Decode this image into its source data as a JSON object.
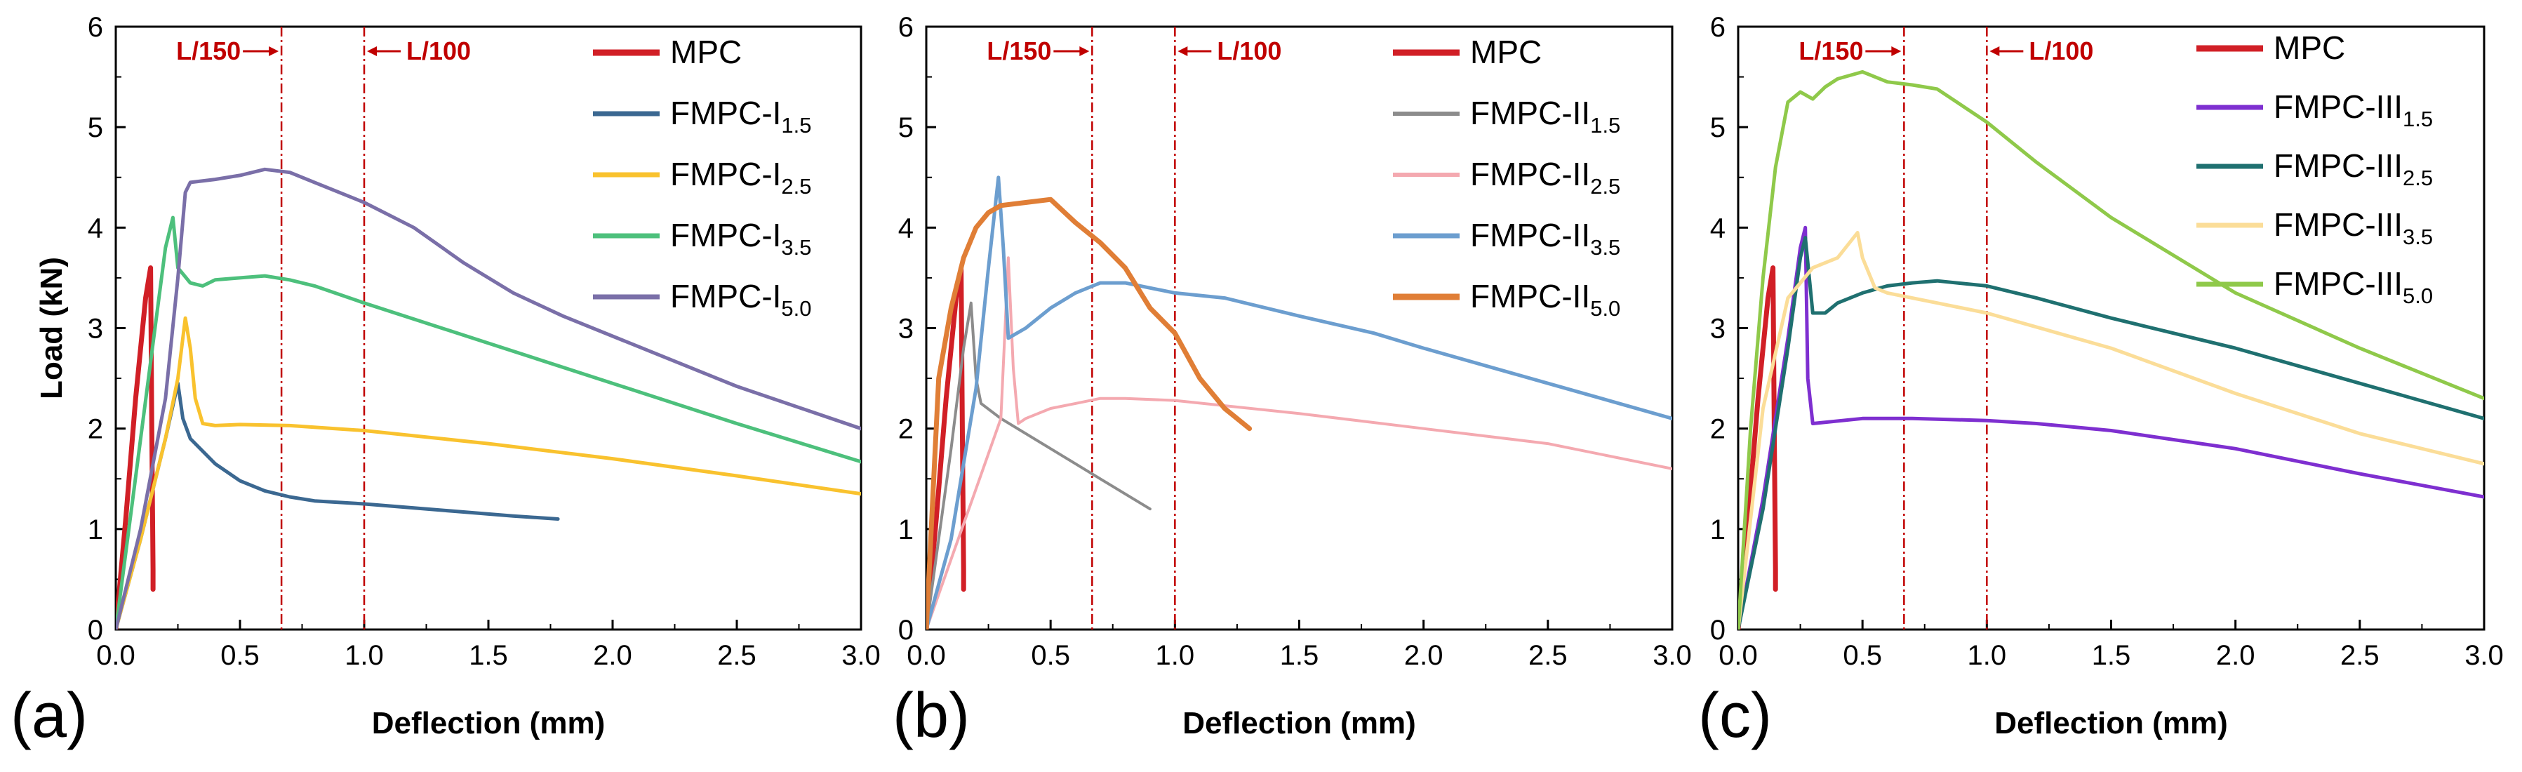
{
  "chart_data": [
    {
      "type": "line",
      "panel_label": "(a)",
      "xlabel": "Deflection (mm)",
      "ylabel": "Load (kN)",
      "xlim": [
        0,
        3
      ],
      "ylim": [
        0,
        6
      ],
      "xticks": [
        "0.0",
        "0.5",
        "1.0",
        "1.5",
        "2.0",
        "2.5",
        "3.0"
      ],
      "yticks": [
        "0",
        "1",
        "2",
        "3",
        "4",
        "5",
        "6"
      ],
      "grid": false,
      "legend_position": "top-right",
      "reference_lines": [
        {
          "x": 0.667,
          "label": "L/150",
          "arrow": "right"
        },
        {
          "x": 1.0,
          "label": "L/100",
          "arrow": "left"
        }
      ],
      "series": [
        {
          "name": "MPC",
          "base": "MPC",
          "sub": "",
          "color": "#d11f26",
          "width": 7,
          "x": [
            0,
            0.04,
            0.08,
            0.12,
            0.14,
            0.145,
            0.15,
            0.15
          ],
          "y": [
            0,
            1.1,
            2.3,
            3.3,
            3.6,
            2.0,
            0.6,
            0.4
          ]
        },
        {
          "name": "FMPC-I1.5",
          "base": "FMPC-I",
          "sub": "1.5",
          "color": "#3b6891",
          "width": 5,
          "x": [
            0,
            0.1,
            0.2,
            0.25,
            0.27,
            0.3,
            0.4,
            0.5,
            0.6,
            0.7,
            0.8,
            1.0,
            1.2,
            1.4,
            1.6,
            1.78
          ],
          "y": [
            0,
            0.9,
            1.9,
            2.45,
            2.1,
            1.9,
            1.65,
            1.48,
            1.38,
            1.32,
            1.28,
            1.25,
            1.21,
            1.17,
            1.13,
            1.1
          ]
        },
        {
          "name": "FMPC-I2.5",
          "base": "FMPC-I",
          "sub": "2.5",
          "color": "#f9c22e",
          "width": 5,
          "x": [
            0,
            0.1,
            0.2,
            0.25,
            0.28,
            0.3,
            0.32,
            0.35,
            0.4,
            0.5,
            0.7,
            1.0,
            1.5,
            2.0,
            2.5,
            3.0
          ],
          "y": [
            0,
            0.9,
            1.9,
            2.5,
            3.1,
            2.8,
            2.3,
            2.05,
            2.03,
            2.04,
            2.03,
            1.98,
            1.85,
            1.7,
            1.53,
            1.35
          ]
        },
        {
          "name": "FMPC-I3.5",
          "base": "FMPC-I",
          "sub": "3.5",
          "color": "#4dc07c",
          "width": 5,
          "x": [
            0,
            0.1,
            0.2,
            0.23,
            0.25,
            0.3,
            0.35,
            0.4,
            0.5,
            0.6,
            0.7,
            0.8,
            1.0,
            1.5,
            2.0,
            2.5,
            3.0
          ],
          "y": [
            0,
            1.9,
            3.8,
            4.1,
            3.6,
            3.45,
            3.42,
            3.48,
            3.5,
            3.52,
            3.48,
            3.42,
            3.25,
            2.85,
            2.45,
            2.05,
            1.67
          ]
        },
        {
          "name": "FMPC-I5.0",
          "base": "FMPC-I",
          "sub": "5.0",
          "color": "#7a6fa8",
          "width": 5,
          "x": [
            0,
            0.1,
            0.2,
            0.25,
            0.28,
            0.3,
            0.4,
            0.5,
            0.6,
            0.7,
            0.8,
            1.0,
            1.2,
            1.4,
            1.6,
            1.8,
            2.0,
            2.5,
            3.0
          ],
          "y": [
            0,
            1.0,
            2.3,
            3.5,
            4.35,
            4.45,
            4.48,
            4.52,
            4.58,
            4.55,
            4.45,
            4.25,
            4.0,
            3.65,
            3.35,
            3.12,
            2.92,
            2.42,
            2.0
          ]
        }
      ]
    },
    {
      "type": "line",
      "panel_label": "(b)",
      "xlabel": "Deflection (mm)",
      "ylabel": "",
      "xlim": [
        0,
        3
      ],
      "ylim": [
        0,
        6
      ],
      "xticks": [
        "0.0",
        "0.5",
        "1.0",
        "1.5",
        "2.0",
        "2.5",
        "3.0"
      ],
      "yticks": [
        "0",
        "1",
        "2",
        "3",
        "4",
        "5",
        "6"
      ],
      "grid": false,
      "legend_position": "top-right",
      "reference_lines": [
        {
          "x": 0.667,
          "label": "L/150",
          "arrow": "right"
        },
        {
          "x": 1.0,
          "label": "L/100",
          "arrow": "left"
        }
      ],
      "series": [
        {
          "name": "MPC",
          "base": "MPC",
          "sub": "",
          "color": "#d11f26",
          "width": 7,
          "x": [
            0,
            0.04,
            0.08,
            0.12,
            0.14,
            0.145,
            0.15,
            0.15
          ],
          "y": [
            0,
            1.1,
            2.3,
            3.3,
            3.6,
            2.0,
            0.6,
            0.4
          ]
        },
        {
          "name": "FMPC-II1.5",
          "base": "FMPC-II",
          "sub": "1.5",
          "color": "#8c8c8c",
          "width": 4,
          "x": [
            0,
            0.1,
            0.15,
            0.18,
            0.2,
            0.22,
            0.3,
            0.5,
            0.7,
            0.9
          ],
          "y": [
            0,
            1.8,
            2.8,
            3.25,
            2.5,
            2.25,
            2.1,
            1.8,
            1.5,
            1.2
          ]
        },
        {
          "name": "FMPC-II2.5",
          "base": "FMPC-II",
          "sub": "2.5",
          "color": "#f4a9b0",
          "width": 4,
          "x": [
            0,
            0.1,
            0.2,
            0.3,
            0.33,
            0.35,
            0.37,
            0.4,
            0.5,
            0.6,
            0.7,
            0.8,
            1.0,
            1.5,
            2.0,
            2.5,
            3.0
          ],
          "y": [
            0,
            0.7,
            1.4,
            2.1,
            3.7,
            2.6,
            2.05,
            2.1,
            2.2,
            2.25,
            2.3,
            2.3,
            2.28,
            2.15,
            2.0,
            1.85,
            1.6
          ]
        },
        {
          "name": "FMPC-II3.5",
          "base": "FMPC-II",
          "sub": "3.5",
          "color": "#6c9ecf",
          "width": 5,
          "x": [
            0,
            0.1,
            0.2,
            0.25,
            0.29,
            0.31,
            0.33,
            0.4,
            0.5,
            0.6,
            0.7,
            0.8,
            1.0,
            1.2,
            1.5,
            1.8,
            2.0,
            2.5,
            3.0
          ],
          "y": [
            0,
            0.9,
            2.4,
            3.6,
            4.5,
            3.8,
            2.9,
            3.0,
            3.2,
            3.35,
            3.45,
            3.45,
            3.35,
            3.3,
            3.12,
            2.95,
            2.8,
            2.45,
            2.1
          ]
        },
        {
          "name": "FMPC-II5.0",
          "base": "FMPC-II",
          "sub": "5.0",
          "color": "#e07e36",
          "width": 7,
          "x": [
            0,
            0.05,
            0.1,
            0.15,
            0.2,
            0.25,
            0.3,
            0.4,
            0.5,
            0.6,
            0.7,
            0.8,
            0.9,
            1.0,
            1.1,
            1.2,
            1.3
          ],
          "y": [
            0,
            2.5,
            3.2,
            3.7,
            4.0,
            4.15,
            4.22,
            4.25,
            4.28,
            4.05,
            3.85,
            3.6,
            3.2,
            2.95,
            2.5,
            2.2,
            2.0
          ]
        }
      ]
    },
    {
      "type": "line",
      "panel_label": "(c)",
      "xlabel": "Deflection (mm)",
      "ylabel": "",
      "xlim": [
        0,
        3
      ],
      "ylim": [
        0,
        6
      ],
      "xticks": [
        "0.0",
        "0.5",
        "1.0",
        "1.5",
        "2.0",
        "2.5",
        "3.0"
      ],
      "yticks": [
        "0",
        "1",
        "2",
        "3",
        "4",
        "5",
        "6"
      ],
      "grid": false,
      "legend_position": "top-right",
      "reference_lines": [
        {
          "x": 0.667,
          "label": "L/150",
          "arrow": "right"
        },
        {
          "x": 1.0,
          "label": "L/100",
          "arrow": "left"
        }
      ],
      "series": [
        {
          "name": "MPC",
          "base": "MPC",
          "sub": "",
          "color": "#d11f26",
          "width": 7,
          "x": [
            0,
            0.04,
            0.08,
            0.12,
            0.14,
            0.145,
            0.15,
            0.15
          ],
          "y": [
            0,
            1.1,
            2.3,
            3.3,
            3.6,
            2.0,
            0.6,
            0.4
          ]
        },
        {
          "name": "FMPC-III1.5",
          "base": "FMPC-III",
          "sub": "1.5",
          "color": "#7e2fd0",
          "width": 5,
          "x": [
            0,
            0.1,
            0.2,
            0.25,
            0.27,
            0.28,
            0.3,
            0.5,
            0.7,
            1.0,
            1.2,
            1.5,
            2.0,
            2.5,
            3.0
          ],
          "y": [
            0,
            1.3,
            2.9,
            3.8,
            4.0,
            2.5,
            2.05,
            2.1,
            2.1,
            2.08,
            2.05,
            1.98,
            1.8,
            1.55,
            1.32
          ]
        },
        {
          "name": "FMPC-III2.5",
          "base": "FMPC-III",
          "sub": "2.5",
          "color": "#1f7070",
          "width": 5,
          "x": [
            0,
            0.1,
            0.2,
            0.25,
            0.27,
            0.3,
            0.35,
            0.4,
            0.5,
            0.6,
            0.7,
            0.8,
            1.0,
            1.2,
            1.5,
            2.0,
            2.5,
            3.0
          ],
          "y": [
            0,
            1.2,
            2.8,
            3.7,
            3.9,
            3.15,
            3.15,
            3.25,
            3.35,
            3.42,
            3.45,
            3.47,
            3.42,
            3.3,
            3.1,
            2.8,
            2.45,
            2.1
          ]
        },
        {
          "name": "FMPC-III3.5",
          "base": "FMPC-III",
          "sub": "3.5",
          "color": "#fbdd98",
          "width": 5,
          "x": [
            0,
            0.1,
            0.2,
            0.3,
            0.4,
            0.48,
            0.5,
            0.55,
            0.6,
            0.7,
            0.8,
            1.0,
            1.5,
            2.0,
            2.5,
            3.0
          ],
          "y": [
            0,
            2.2,
            3.3,
            3.6,
            3.7,
            3.95,
            3.7,
            3.4,
            3.35,
            3.3,
            3.25,
            3.15,
            2.8,
            2.35,
            1.95,
            1.65
          ]
        },
        {
          "name": "FMPC-III5.0",
          "base": "FMPC-III",
          "sub": "5.0",
          "color": "#8fc94a",
          "width": 5,
          "x": [
            0,
            0.05,
            0.1,
            0.15,
            0.2,
            0.25,
            0.3,
            0.35,
            0.4,
            0.5,
            0.6,
            0.7,
            0.8,
            1.0,
            1.2,
            1.5,
            2.0,
            2.5,
            3.0
          ],
          "y": [
            0,
            2.0,
            3.5,
            4.6,
            5.25,
            5.35,
            5.28,
            5.4,
            5.48,
            5.55,
            5.45,
            5.42,
            5.38,
            5.05,
            4.65,
            4.1,
            3.35,
            2.8,
            2.3
          ]
        }
      ]
    }
  ]
}
